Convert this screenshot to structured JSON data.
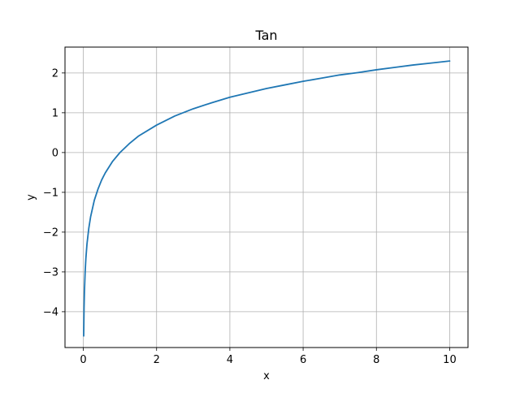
{
  "chart_data": {
    "type": "line",
    "title": "Tan",
    "xlabel": "x",
    "ylabel": "y",
    "xlim": [
      -0.5,
      10.5
    ],
    "ylim": [
      -4.9,
      2.65
    ],
    "xticks": [
      0,
      2,
      4,
      6,
      8,
      10
    ],
    "xtick_labels": [
      "0",
      "2",
      "4",
      "6",
      "8",
      "10"
    ],
    "yticks": [
      2,
      1,
      0,
      -1,
      -2,
      -3,
      -4
    ],
    "ytick_labels": [
      "2",
      "1",
      "0",
      "−1",
      "−2",
      "−3",
      "−4"
    ],
    "grid": true,
    "legend": "none",
    "series": [
      {
        "color": "#1f77b4",
        "x": [
          0.01,
          0.02,
          0.03,
          0.05,
          0.07,
          0.1,
          0.15,
          0.2,
          0.3,
          0.4,
          0.5,
          0.6,
          0.8,
          1.0,
          1.25,
          1.5,
          2.0,
          2.5,
          3.0,
          3.5,
          4.0,
          4.5,
          5.0,
          5.5,
          6.0,
          6.5,
          7.0,
          7.5,
          8.0,
          8.5,
          9.0,
          9.5,
          10.0
        ],
        "y": [
          -4.61,
          -3.91,
          -3.51,
          -3.0,
          -2.66,
          -2.3,
          -1.9,
          -1.61,
          -1.2,
          -0.92,
          -0.69,
          -0.51,
          -0.22,
          0.0,
          0.22,
          0.41,
          0.69,
          0.92,
          1.1,
          1.25,
          1.39,
          1.5,
          1.61,
          1.7,
          1.79,
          1.87,
          1.95,
          2.01,
          2.08,
          2.14,
          2.2,
          2.25,
          2.3
        ]
      }
    ]
  }
}
